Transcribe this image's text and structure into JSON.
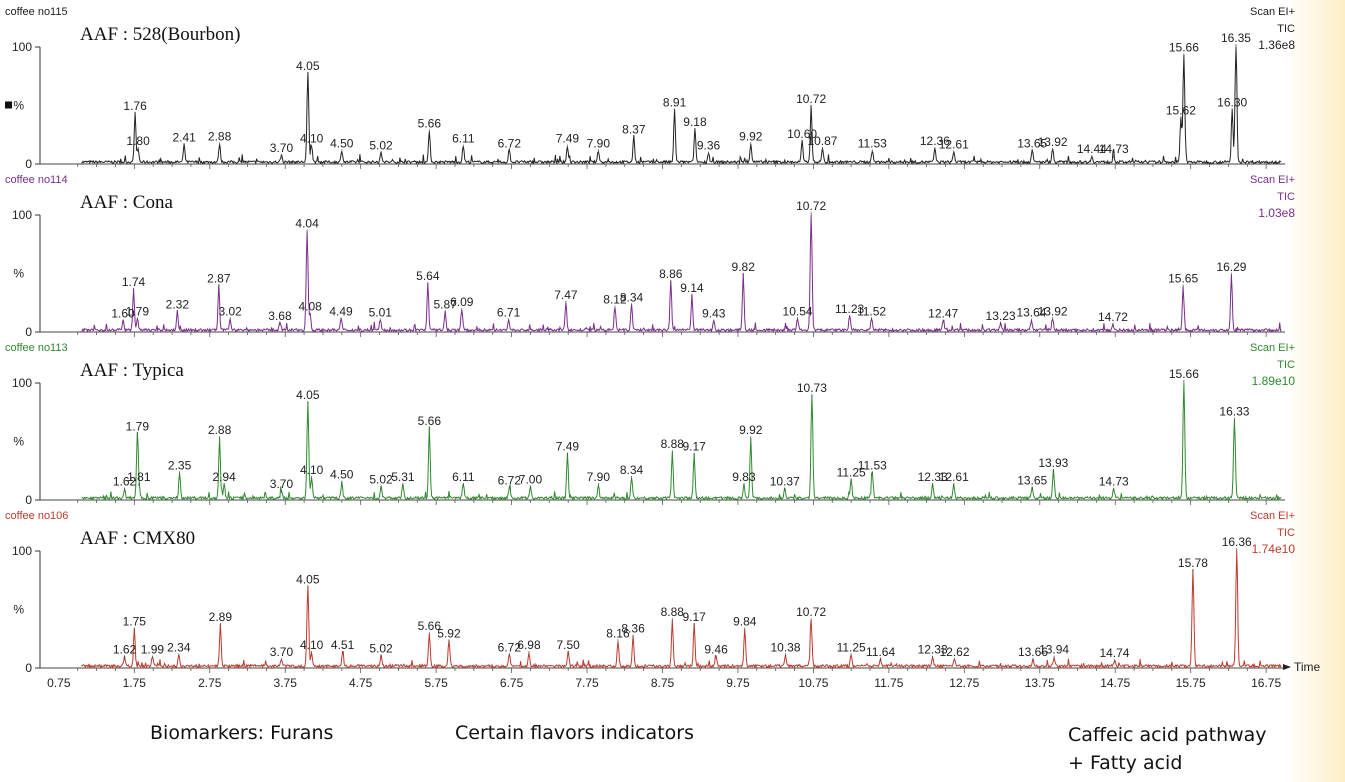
{
  "captions": {
    "furans": "Biomarkers: Furans",
    "flavors": "Certain flavors indicators",
    "caffeic_line1": "Caffeic acid pathway",
    "caffeic_line2": "+ Fatty acid"
  },
  "chart_data": {
    "type": "line",
    "x_axis": {
      "label": "Time",
      "range": [
        0.5,
        17.0
      ],
      "ticks": [
        0.75,
        1.75,
        2.75,
        3.75,
        4.75,
        5.75,
        6.75,
        7.75,
        8.75,
        9.75,
        10.75,
        11.75,
        12.75,
        13.75,
        14.75,
        15.75,
        16.75
      ]
    },
    "y_axis": {
      "label": "%",
      "ticks": [
        0,
        100
      ],
      "range": [
        0,
        100
      ]
    },
    "grid": false,
    "panels": [
      {
        "sample": "coffee no115",
        "title": "AAF : 528(Bourbon)",
        "scan": "Scan EI+",
        "detector": "TIC",
        "intensity": "1.36e8",
        "color": "#222222",
        "peaks": [
          {
            "rt": 1.76,
            "h": 42
          },
          {
            "rt": 1.8,
            "h": 12
          },
          {
            "rt": 2.41,
            "h": 15
          },
          {
            "rt": 2.88,
            "h": 16
          },
          {
            "rt": 3.7,
            "h": 6
          },
          {
            "rt": 4.05,
            "h": 76
          },
          {
            "rt": 4.1,
            "h": 14
          },
          {
            "rt": 4.5,
            "h": 10
          },
          {
            "rt": 5.02,
            "h": 8
          },
          {
            "rt": 5.66,
            "h": 27
          },
          {
            "rt": 6.11,
            "h": 14
          },
          {
            "rt": 6.72,
            "h": 10
          },
          {
            "rt": 7.49,
            "h": 14
          },
          {
            "rt": 7.9,
            "h": 10
          },
          {
            "rt": 8.37,
            "h": 22
          },
          {
            "rt": 8.91,
            "h": 45
          },
          {
            "rt": 9.18,
            "h": 28
          },
          {
            "rt": 9.36,
            "h": 8
          },
          {
            "rt": 9.92,
            "h": 16
          },
          {
            "rt": 10.6,
            "h": 18
          },
          {
            "rt": 10.72,
            "h": 48
          },
          {
            "rt": 10.87,
            "h": 12
          },
          {
            "rt": 11.53,
            "h": 10
          },
          {
            "rt": 12.36,
            "h": 12
          },
          {
            "rt": 12.61,
            "h": 9
          },
          {
            "rt": 13.65,
            "h": 10
          },
          {
            "rt": 13.92,
            "h": 11
          },
          {
            "rt": 14.44,
            "h": 5
          },
          {
            "rt": 14.73,
            "h": 5
          },
          {
            "rt": 15.62,
            "h": 38
          },
          {
            "rt": 15.66,
            "h": 92
          },
          {
            "rt": 16.3,
            "h": 45
          },
          {
            "rt": 16.35,
            "h": 100
          }
        ]
      },
      {
        "sample": "coffee no114",
        "title": "AAF : Cona",
        "scan": "Scan EI+",
        "detector": "TIC",
        "intensity": "1.03e8",
        "color": "#7b2d8e",
        "peaks": [
          {
            "rt": 1.6,
            "h": 8
          },
          {
            "rt": 1.74,
            "h": 35
          },
          {
            "rt": 1.79,
            "h": 10
          },
          {
            "rt": 2.32,
            "h": 16
          },
          {
            "rt": 2.87,
            "h": 38
          },
          {
            "rt": 3.02,
            "h": 10
          },
          {
            "rt": 3.68,
            "h": 6
          },
          {
            "rt": 4.04,
            "h": 85
          },
          {
            "rt": 4.08,
            "h": 14
          },
          {
            "rt": 4.49,
            "h": 10
          },
          {
            "rt": 5.01,
            "h": 9
          },
          {
            "rt": 5.64,
            "h": 40
          },
          {
            "rt": 5.87,
            "h": 16
          },
          {
            "rt": 6.09,
            "h": 18
          },
          {
            "rt": 6.71,
            "h": 9
          },
          {
            "rt": 7.47,
            "h": 24
          },
          {
            "rt": 8.12,
            "h": 20
          },
          {
            "rt": 8.34,
            "h": 22
          },
          {
            "rt": 8.86,
            "h": 42
          },
          {
            "rt": 9.14,
            "h": 30
          },
          {
            "rt": 9.43,
            "h": 8
          },
          {
            "rt": 9.82,
            "h": 48
          },
          {
            "rt": 10.54,
            "h": 10
          },
          {
            "rt": 10.72,
            "h": 100
          },
          {
            "rt": 11.23,
            "h": 12
          },
          {
            "rt": 11.52,
            "h": 10
          },
          {
            "rt": 12.47,
            "h": 8
          },
          {
            "rt": 13.23,
            "h": 6
          },
          {
            "rt": 13.64,
            "h": 9
          },
          {
            "rt": 13.92,
            "h": 10
          },
          {
            "rt": 14.72,
            "h": 5
          },
          {
            "rt": 15.65,
            "h": 38
          },
          {
            "rt": 16.29,
            "h": 48
          }
        ]
      },
      {
        "sample": "coffee no113",
        "title": "AAF : Typica",
        "scan": "Scan EI+",
        "detector": "TIC",
        "intensity": "1.89e10",
        "color": "#2f8a2f",
        "peaks": [
          {
            "rt": 1.62,
            "h": 8
          },
          {
            "rt": 1.79,
            "h": 55
          },
          {
            "rt": 1.81,
            "h": 12
          },
          {
            "rt": 2.35,
            "h": 22
          },
          {
            "rt": 2.88,
            "h": 52
          },
          {
            "rt": 2.94,
            "h": 12
          },
          {
            "rt": 3.7,
            "h": 6
          },
          {
            "rt": 4.05,
            "h": 82
          },
          {
            "rt": 4.1,
            "h": 18
          },
          {
            "rt": 4.5,
            "h": 14
          },
          {
            "rt": 5.02,
            "h": 10
          },
          {
            "rt": 5.31,
            "h": 12
          },
          {
            "rt": 5.66,
            "h": 60
          },
          {
            "rt": 6.11,
            "h": 12
          },
          {
            "rt": 6.72,
            "h": 9
          },
          {
            "rt": 7.0,
            "h": 10
          },
          {
            "rt": 7.49,
            "h": 38
          },
          {
            "rt": 7.9,
            "h": 12
          },
          {
            "rt": 8.34,
            "h": 18
          },
          {
            "rt": 8.88,
            "h": 40
          },
          {
            "rt": 9.17,
            "h": 38
          },
          {
            "rt": 9.83,
            "h": 12
          },
          {
            "rt": 9.92,
            "h": 52
          },
          {
            "rt": 10.37,
            "h": 8
          },
          {
            "rt": 10.73,
            "h": 88
          },
          {
            "rt": 11.25,
            "h": 16
          },
          {
            "rt": 11.53,
            "h": 22
          },
          {
            "rt": 12.33,
            "h": 12
          },
          {
            "rt": 12.61,
            "h": 12
          },
          {
            "rt": 13.65,
            "h": 9
          },
          {
            "rt": 13.93,
            "h": 24
          },
          {
            "rt": 14.73,
            "h": 8
          },
          {
            "rt": 15.66,
            "h": 100
          },
          {
            "rt": 16.33,
            "h": 68
          }
        ]
      },
      {
        "sample": "coffee no106",
        "title": "AAF : CMX80",
        "scan": "Scan EI+",
        "detector": "TIC",
        "intensity": "1.74e10",
        "color": "#c0392b",
        "peaks": [
          {
            "rt": 1.62,
            "h": 8
          },
          {
            "rt": 1.75,
            "h": 32
          },
          {
            "rt": 1.99,
            "h": 8
          },
          {
            "rt": 2.34,
            "h": 10
          },
          {
            "rt": 2.89,
            "h": 36
          },
          {
            "rt": 3.7,
            "h": 6
          },
          {
            "rt": 4.05,
            "h": 68
          },
          {
            "rt": 4.1,
            "h": 12
          },
          {
            "rt": 4.51,
            "h": 12
          },
          {
            "rt": 5.02,
            "h": 9
          },
          {
            "rt": 5.66,
            "h": 28
          },
          {
            "rt": 5.92,
            "h": 22
          },
          {
            "rt": 6.72,
            "h": 10
          },
          {
            "rt": 6.98,
            "h": 12
          },
          {
            "rt": 7.5,
            "h": 12
          },
          {
            "rt": 8.16,
            "h": 22
          },
          {
            "rt": 8.36,
            "h": 26
          },
          {
            "rt": 8.88,
            "h": 40
          },
          {
            "rt": 9.17,
            "h": 36
          },
          {
            "rt": 9.46,
            "h": 8
          },
          {
            "rt": 9.84,
            "h": 32
          },
          {
            "rt": 10.38,
            "h": 10
          },
          {
            "rt": 10.72,
            "h": 40
          },
          {
            "rt": 11.25,
            "h": 10
          },
          {
            "rt": 11.64,
            "h": 6
          },
          {
            "rt": 12.33,
            "h": 8
          },
          {
            "rt": 12.62,
            "h": 6
          },
          {
            "rt": 13.66,
            "h": 6
          },
          {
            "rt": 13.94,
            "h": 8
          },
          {
            "rt": 14.74,
            "h": 5
          },
          {
            "rt": 15.78,
            "h": 82
          },
          {
            "rt": 16.36,
            "h": 100
          }
        ]
      }
    ]
  }
}
